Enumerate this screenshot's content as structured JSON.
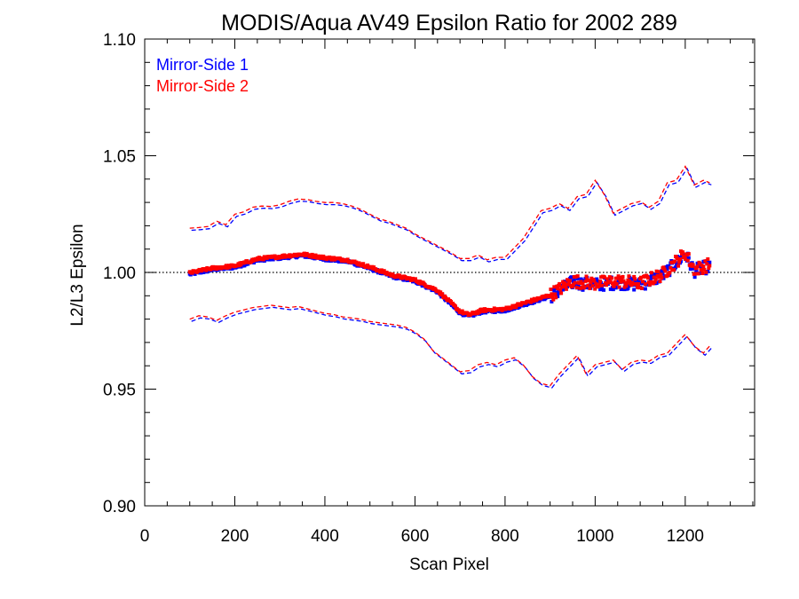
{
  "chart_data": {
    "type": "scatter",
    "title": "MODIS/Aqua AV49 Epsilon Ratio for 2002 289",
    "xlabel": "Scan Pixel",
    "ylabel": "L2/L3 Epsilon",
    "xlim": [
      0,
      1354
    ],
    "ylim": [
      0.9,
      1.1
    ],
    "xticks": [
      0,
      200,
      400,
      600,
      800,
      1000,
      1200
    ],
    "xtick_labels": [
      "0",
      "200",
      "400",
      "600",
      "800",
      "1000",
      "1200"
    ],
    "yticks": [
      0.9,
      0.95,
      1.0,
      1.05,
      1.1
    ],
    "ytick_labels": [
      "0.90",
      "0.95",
      "1.00",
      "1.05",
      "1.10"
    ],
    "reference_line": {
      "y": 1.0,
      "style": "dotted"
    },
    "legend": {
      "placement": "top-left"
    },
    "colors": {
      "ms1": "#0000ff",
      "ms2": "#ff0000"
    },
    "center_profile": {
      "x": [
        100,
        150,
        200,
        250,
        300,
        350,
        400,
        450,
        500,
        550,
        600,
        650,
        700,
        720,
        750,
        800,
        850,
        900,
        950,
        1000,
        1050,
        1100,
        1150,
        1200,
        1220,
        1254
      ],
      "y": [
        0.9995,
        1.0015,
        1.0025,
        1.0055,
        1.0065,
        1.0075,
        1.006,
        1.005,
        1.002,
        0.9985,
        0.9965,
        0.992,
        0.983,
        0.9815,
        0.9835,
        0.984,
        0.987,
        0.99,
        0.996,
        0.995,
        0.996,
        0.995,
        0.999,
        1.008,
        1.001,
        1.003
      ]
    },
    "upper_bound": {
      "x": [
        100,
        120,
        140,
        160,
        180,
        200,
        220,
        240,
        260,
        280,
        300,
        320,
        340,
        360,
        380,
        400,
        420,
        440,
        460,
        480,
        500,
        520,
        540,
        560,
        580,
        600,
        620,
        640,
        660,
        680,
        700,
        720,
        740,
        760,
        780,
        800,
        820,
        840,
        860,
        880,
        900,
        920,
        940,
        960,
        980,
        1000,
        1020,
        1040,
        1060,
        1080,
        1100,
        1120,
        1140,
        1160,
        1180,
        1200,
        1220,
        1240,
        1254
      ],
      "y": [
        1.0185,
        1.0188,
        1.0192,
        1.0215,
        1.02,
        1.0245,
        1.0255,
        1.0275,
        1.028,
        1.0278,
        1.0285,
        1.03,
        1.031,
        1.0308,
        1.03,
        1.0295,
        1.0295,
        1.029,
        1.028,
        1.0265,
        1.0245,
        1.0225,
        1.0215,
        1.02,
        1.0185,
        1.016,
        1.014,
        1.012,
        1.01,
        1.008,
        1.0055,
        1.0055,
        1.007,
        1.005,
        1.006,
        1.006,
        1.01,
        1.014,
        1.02,
        1.026,
        1.027,
        1.029,
        1.027,
        1.032,
        1.033,
        1.039,
        1.033,
        1.025,
        1.027,
        1.029,
        1.03,
        1.0275,
        1.03,
        1.038,
        1.039,
        1.045,
        1.037,
        1.039,
        1.038
      ]
    },
    "lower_bound": {
      "x": [
        100,
        120,
        140,
        160,
        180,
        200,
        220,
        240,
        260,
        280,
        300,
        320,
        340,
        360,
        380,
        400,
        420,
        440,
        460,
        480,
        500,
        520,
        540,
        560,
        580,
        600,
        620,
        640,
        660,
        680,
        700,
        720,
        740,
        760,
        780,
        800,
        820,
        840,
        860,
        880,
        900,
        920,
        940,
        960,
        980,
        1000,
        1020,
        1040,
        1060,
        1080,
        1100,
        1120,
        1140,
        1160,
        1180,
        1200,
        1220,
        1240,
        1254
      ],
      "y": [
        0.9795,
        0.981,
        0.9805,
        0.979,
        0.981,
        0.9825,
        0.9835,
        0.9845,
        0.985,
        0.9855,
        0.985,
        0.9845,
        0.985,
        0.984,
        0.983,
        0.982,
        0.9815,
        0.9805,
        0.98,
        0.9795,
        0.9785,
        0.978,
        0.9775,
        0.977,
        0.976,
        0.974,
        0.971,
        0.966,
        0.963,
        0.96,
        0.957,
        0.9575,
        0.96,
        0.961,
        0.96,
        0.962,
        0.963,
        0.96,
        0.955,
        0.952,
        0.951,
        0.956,
        0.96,
        0.964,
        0.956,
        0.96,
        0.961,
        0.962,
        0.958,
        0.961,
        0.962,
        0.9615,
        0.964,
        0.965,
        0.969,
        0.973,
        0.968,
        0.965,
        0.968
      ]
    },
    "series": [
      {
        "name": "Mirror-Side 1",
        "color": "#0000ff",
        "point_count": 600,
        "offset": -0.0003
      },
      {
        "name": "Mirror-Side 2",
        "color": "#ff0000",
        "point_count": 600,
        "offset": 0.0003
      }
    ]
  }
}
